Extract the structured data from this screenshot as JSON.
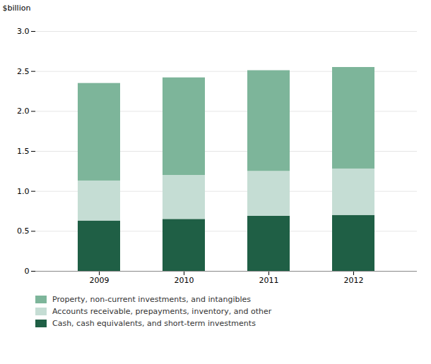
{
  "chart_data": {
    "type": "bar",
    "stacked": true,
    "categories": [
      "2009",
      "2010",
      "2011",
      "2012"
    ],
    "series": [
      {
        "name": "Cash, cash equivalents, and short-term investments",
        "color": "#1f5f45",
        "values": [
          0.63,
          0.65,
          0.69,
          0.7
        ]
      },
      {
        "name": "Accounts receivable, prepayments, inventory, and other",
        "color": "#c5ddd4",
        "values": [
          0.5,
          0.55,
          0.56,
          0.58
        ]
      },
      {
        "name": "Property, non-current investments, and intangibles",
        "color": "#7db59a",
        "values": [
          1.22,
          1.22,
          1.26,
          1.27
        ]
      }
    ],
    "ylabel": "$billion",
    "ylim": [
      0,
      3.0
    ],
    "yticks": [
      0,
      0.5,
      {
        "value": 1.0,
        "label": "1.0"
      },
      1.5,
      {
        "value": 2.0,
        "label": "2.0"
      },
      2.5,
      {
        "value": 3.0,
        "label": "3.0"
      }
    ],
    "grid": true,
    "legend": "bottom"
  }
}
